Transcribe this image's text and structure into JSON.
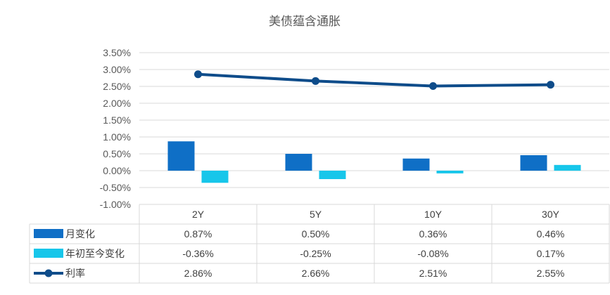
{
  "chart_data": {
    "type": "bar",
    "title": "美债蕴含通胀",
    "categories": [
      "2Y",
      "5Y",
      "10Y",
      "30Y"
    ],
    "ylim": [
      -1.0,
      3.5
    ],
    "yticks": [
      3.5,
      3.0,
      2.5,
      2.0,
      1.5,
      1.0,
      0.5,
      0.0,
      -0.5,
      -1.0
    ],
    "ytick_labels": [
      "3.50%",
      "3.00%",
      "2.50%",
      "2.00%",
      "1.50%",
      "1.00%",
      "0.50%",
      "0.00%",
      "-0.50%",
      "-1.00%"
    ],
    "grid": true,
    "legend": "data-table",
    "series": [
      {
        "name": "月变化",
        "type": "bar",
        "color": "#0f6fc6",
        "values": [
          0.87,
          0.5,
          0.36,
          0.46
        ],
        "labels": [
          "0.87%",
          "0.50%",
          "0.36%",
          "0.46%"
        ]
      },
      {
        "name": "年初至今变化",
        "type": "bar",
        "color": "#17c6ea",
        "values": [
          -0.36,
          -0.25,
          -0.08,
          0.17
        ],
        "labels": [
          "-0.36%",
          "-0.25%",
          "-0.08%",
          "0.17%"
        ]
      },
      {
        "name": "利率",
        "type": "line",
        "color": "#0e4c8a",
        "values": [
          2.86,
          2.66,
          2.51,
          2.55
        ],
        "labels": [
          "2.86%",
          "2.66%",
          "2.51%",
          "2.55%"
        ]
      }
    ]
  }
}
